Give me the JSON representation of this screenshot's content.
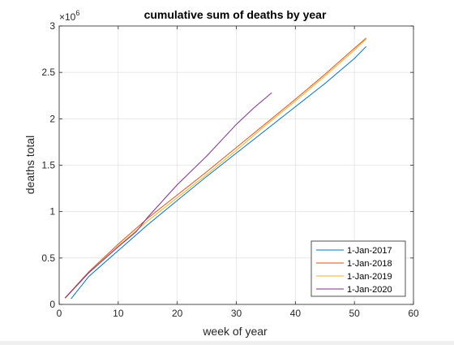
{
  "chart_data": {
    "type": "line",
    "title": "cumulative sum of deaths by year",
    "xlabel": "week of year",
    "ylabel": "deaths total",
    "xlim": [
      0,
      60
    ],
    "ylim": [
      0,
      3000000
    ],
    "y_exponent_label": "×10",
    "y_exponent_power": "6",
    "xticks": [
      0,
      10,
      20,
      30,
      40,
      50,
      60
    ],
    "xtick_labels": [
      "0",
      "10",
      "20",
      "30",
      "40",
      "50",
      "60"
    ],
    "yticks": [
      0,
      500000,
      1000000,
      1500000,
      2000000,
      2500000,
      3000000
    ],
    "ytick_labels": [
      "0",
      "0.5",
      "1",
      "1.5",
      "2",
      "2.5",
      "3"
    ],
    "grid": true,
    "legend_position": "bottom-right",
    "series": [
      {
        "name": "1-Jan-2017",
        "color": "#0072BD",
        "x": [
          2,
          5,
          10,
          15,
          20,
          25,
          30,
          35,
          40,
          45,
          50,
          52
        ],
        "y": [
          60000,
          300000,
          580000,
          860000,
          1120000,
          1380000,
          1630000,
          1880000,
          2130000,
          2380000,
          2650000,
          2780000
        ]
      },
      {
        "name": "1-Jan-2018",
        "color": "#D95319",
        "x": [
          1,
          5,
          10,
          15,
          20,
          25,
          30,
          35,
          40,
          45,
          50,
          52
        ],
        "y": [
          70000,
          350000,
          650000,
          930000,
          1180000,
          1430000,
          1690000,
          1950000,
          2210000,
          2480000,
          2760000,
          2870000
        ]
      },
      {
        "name": "1-Jan-2019",
        "color": "#EDB120",
        "x": [
          1,
          5,
          10,
          15,
          20,
          25,
          30,
          35,
          40,
          45,
          50,
          52
        ],
        "y": [
          65000,
          340000,
          630000,
          900000,
          1150000,
          1400000,
          1660000,
          1930000,
          2190000,
          2460000,
          2740000,
          2860000
        ]
      },
      {
        "name": "1-Jan-2020",
        "color": "#7E2F8E",
        "x": [
          1,
          5,
          10,
          13,
          15,
          18,
          20,
          25,
          30,
          33,
          36
        ],
        "y": [
          70000,
          340000,
          620000,
          780000,
          940000,
          1150000,
          1290000,
          1600000,
          1940000,
          2120000,
          2280000
        ]
      }
    ]
  }
}
